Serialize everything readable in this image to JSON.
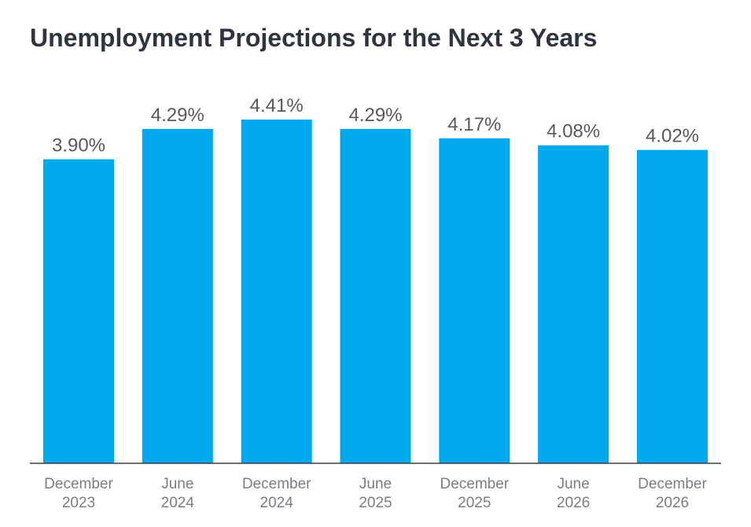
{
  "title": "Unemployment Projections for the Next 3 Years",
  "chart_data": {
    "type": "bar",
    "title": "Unemployment Projections for the Next 3 Years",
    "categories": [
      [
        "December",
        "2023"
      ],
      [
        "June",
        "2024"
      ],
      [
        "December",
        "2024"
      ],
      [
        "June",
        "2025"
      ],
      [
        "December",
        "2025"
      ],
      [
        "June",
        "2026"
      ],
      [
        "December",
        "2026"
      ]
    ],
    "values": [
      3.9,
      4.29,
      4.41,
      4.29,
      4.17,
      4.08,
      4.02
    ],
    "data_labels": [
      "3.90%",
      "4.29%",
      "4.41%",
      "4.29%",
      "4.17%",
      "4.08%",
      "4.02%"
    ],
    "xlabel": "",
    "ylabel": "",
    "ylim": [
      0,
      4.41
    ],
    "grid": false,
    "legend": "none",
    "colors": {
      "bar": "#00a9ed",
      "axis": "#404040",
      "value_label": "#55595f",
      "tick_label": "#7a7e84",
      "title": "#2f3440"
    }
  }
}
